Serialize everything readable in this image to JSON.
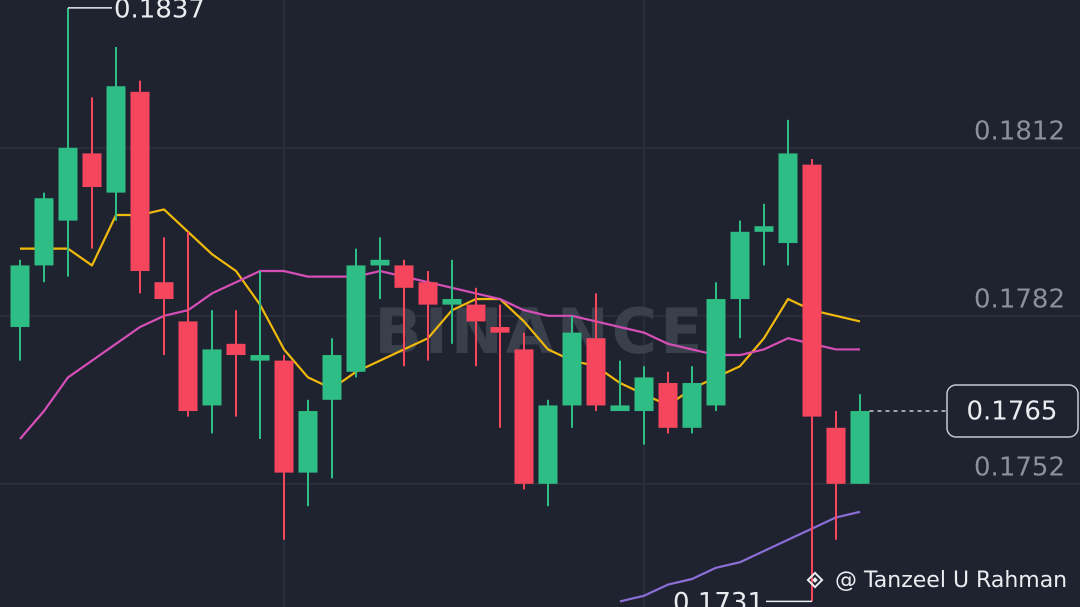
{
  "chart_data": {
    "type": "candlestick",
    "up_color": "#2ebd85",
    "down_color": "#f6465d",
    "open": [
      0.178,
      0.1791,
      0.1799,
      0.1811,
      0.1804,
      0.1822,
      0.1788,
      0.1781,
      0.1766,
      0.1777,
      0.1774,
      0.1774,
      0.1754,
      0.1767,
      0.1772,
      0.1791,
      0.1791,
      0.1788,
      0.1784,
      0.1784,
      0.178,
      0.1776,
      0.1752,
      0.1766,
      0.1778,
      0.1765,
      0.1765,
      0.177,
      0.1762,
      0.1766,
      0.1785,
      0.1797,
      0.1795,
      0.1809,
      0.1762,
      0.1752
    ],
    "high": [
      0.1792,
      0.1804,
      0.1837,
      0.1821,
      0.183,
      0.1824,
      0.1796,
      0.1797,
      0.1783,
      0.1783,
      0.179,
      0.1775,
      0.1767,
      0.1778,
      0.1794,
      0.1796,
      0.1792,
      0.179,
      0.1792,
      0.1787,
      0.1784,
      0.1779,
      0.1767,
      0.1782,
      0.1786,
      0.1774,
      0.1773,
      0.1772,
      0.1773,
      0.1788,
      0.1799,
      0.1802,
      0.1817,
      0.181,
      0.1765,
      0.1768
    ],
    "low": [
      0.1774,
      0.1788,
      0.1789,
      0.1794,
      0.1799,
      0.1786,
      0.1775,
      0.1764,
      0.1761,
      0.1764,
      0.176,
      0.1742,
      0.1748,
      0.1753,
      0.1771,
      0.1785,
      0.1773,
      0.1774,
      0.1777,
      0.1773,
      0.1762,
      0.1751,
      0.1748,
      0.1762,
      0.1765,
      0.1765,
      0.1759,
      0.1761,
      0.1761,
      0.1765,
      0.1778,
      0.1791,
      0.1791,
      0.1731,
      0.1742,
      0.1752
    ],
    "close": [
      0.1791,
      0.1803,
      0.1812,
      0.1805,
      0.1823,
      0.179,
      0.1785,
      0.1765,
      0.1776,
      0.1775,
      0.1775,
      0.1754,
      0.1765,
      0.1775,
      0.1791,
      0.1792,
      0.1787,
      0.1784,
      0.1785,
      0.1781,
      0.1779,
      0.1752,
      0.1766,
      0.1779,
      0.1766,
      0.1766,
      0.1771,
      0.1762,
      0.177,
      0.1785,
      0.1797,
      0.1798,
      0.1811,
      0.1764,
      0.1752,
      0.1765
    ],
    "lines": [
      {
        "color": "#f0b90b",
        "values": [
          0.1794,
          0.1794,
          0.1794,
          0.1791,
          0.18,
          0.18,
          0.1801,
          0.1797,
          0.1793,
          0.179,
          0.1784,
          0.1776,
          0.1771,
          0.1769,
          0.1772,
          0.1774,
          0.1776,
          0.1778,
          0.1783,
          0.1785,
          0.1785,
          0.1781,
          0.1776,
          0.1774,
          0.1773,
          0.177,
          0.1768,
          0.1766,
          0.1769,
          0.1771,
          0.1773,
          0.1778,
          0.1785,
          0.1783,
          0.1782,
          0.1781
        ]
      },
      {
        "color": "#d64fb6",
        "values": [
          0.176,
          0.1765,
          0.1771,
          0.1774,
          0.1777,
          0.178,
          0.1782,
          0.1783,
          0.1786,
          0.1788,
          0.179,
          0.179,
          0.1789,
          0.1789,
          0.1789,
          0.179,
          0.1789,
          0.1788,
          0.1787,
          0.1786,
          0.1785,
          0.1783,
          0.1782,
          0.1782,
          0.1781,
          0.178,
          0.1779,
          0.1777,
          0.1776,
          0.1775,
          0.1775,
          0.1776,
          0.1778,
          0.1777,
          0.1776,
          0.1776
        ]
      },
      {
        "color": "#8b6fd6",
        "values": [
          null,
          null,
          null,
          null,
          null,
          null,
          null,
          null,
          null,
          null,
          null,
          null,
          null,
          null,
          null,
          null,
          null,
          null,
          null,
          null,
          null,
          null,
          null,
          null,
          null,
          0.1731,
          0.1732,
          0.1734,
          0.1735,
          0.1737,
          0.1738,
          0.174,
          0.1742,
          0.1744,
          0.1746,
          0.1747
        ]
      }
    ],
    "ylim": [
      0.173,
      0.18384
    ],
    "yticks": [
      0.1752,
      0.1782,
      0.1812
    ],
    "grid": true,
    "high_label": 0.1837,
    "low_label": 0.1731,
    "last_price": 0.1765,
    "watermark": "BINANCE",
    "credit": "@ Tanzeel U Rahman"
  }
}
